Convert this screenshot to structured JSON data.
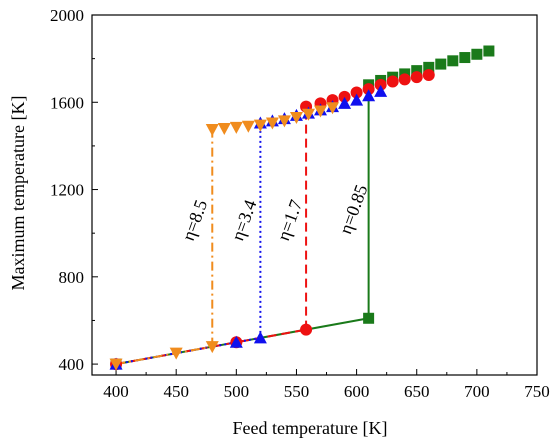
{
  "chart_data": {
    "type": "scatter",
    "title": "",
    "xlabel": "Feed temperature [K]",
    "ylabel": "Maximum temperature [K]",
    "xlim": [
      380,
      750
    ],
    "ylim": [
      350,
      2000
    ],
    "xticks": [
      400,
      450,
      500,
      550,
      600,
      650,
      700,
      750
    ],
    "yticks": [
      400,
      800,
      1200,
      1600,
      2000
    ],
    "grid": false,
    "legend": "none",
    "series": [
      {
        "marker": "square",
        "color": "#1a7a1a",
        "linestyle": "solid",
        "lower": [
          [
            400,
            400
          ],
          [
            610,
            610
          ]
        ],
        "upper": [
          [
            610,
            1680
          ],
          [
            620,
            1700
          ],
          [
            630,
            1715
          ],
          [
            640,
            1730
          ],
          [
            650,
            1745
          ],
          [
            660,
            1760
          ],
          [
            670,
            1775
          ],
          [
            680,
            1790
          ],
          [
            690,
            1805
          ],
          [
            700,
            1820
          ],
          [
            710,
            1835
          ]
        ]
      },
      {
        "marker": "circle",
        "color": "#ee1111",
        "linestyle": "dashed",
        "lower": [
          [
            400,
            400
          ],
          [
            500,
            500
          ],
          [
            558,
            558
          ]
        ],
        "upper": [
          [
            558,
            1580
          ],
          [
            570,
            1595
          ],
          [
            580,
            1610
          ],
          [
            590,
            1625
          ],
          [
            600,
            1645
          ],
          [
            610,
            1660
          ],
          [
            620,
            1680
          ],
          [
            630,
            1695
          ],
          [
            640,
            1705
          ],
          [
            650,
            1715
          ],
          [
            660,
            1725
          ]
        ]
      },
      {
        "marker": "triangle-up",
        "color": "#1010ee",
        "linestyle": "dotted",
        "lower": [
          [
            400,
            400
          ],
          [
            500,
            500
          ],
          [
            520,
            520
          ]
        ],
        "upper": [
          [
            520,
            1505
          ],
          [
            530,
            1515
          ],
          [
            540,
            1525
          ],
          [
            550,
            1540
          ],
          [
            560,
            1550
          ],
          [
            570,
            1565
          ],
          [
            580,
            1580
          ],
          [
            590,
            1595
          ],
          [
            600,
            1610
          ],
          [
            610,
            1630
          ],
          [
            620,
            1650
          ]
        ]
      },
      {
        "marker": "triangle-down",
        "color": "#f08c1e",
        "linestyle": "dashdot",
        "lower": [
          [
            400,
            400
          ],
          [
            450,
            450
          ],
          [
            480,
            480
          ]
        ],
        "upper": [
          [
            480,
            1475
          ],
          [
            490,
            1480
          ],
          [
            500,
            1485
          ],
          [
            510,
            1490
          ],
          [
            520,
            1495
          ],
          [
            530,
            1505
          ],
          [
            540,
            1515
          ],
          [
            550,
            1530
          ],
          [
            560,
            1545
          ],
          [
            570,
            1560
          ],
          [
            580,
            1575
          ]
        ]
      }
    ],
    "annotations": [
      {
        "text": "η=8.5",
        "x": 470,
        "y": 1050
      },
      {
        "text": "η=3.4",
        "x": 511,
        "y": 1050
      },
      {
        "text": "η=1.7",
        "x": 549,
        "y": 1050
      },
      {
        "text": "η=0.85",
        "x": 602,
        "y": 1100
      }
    ]
  }
}
